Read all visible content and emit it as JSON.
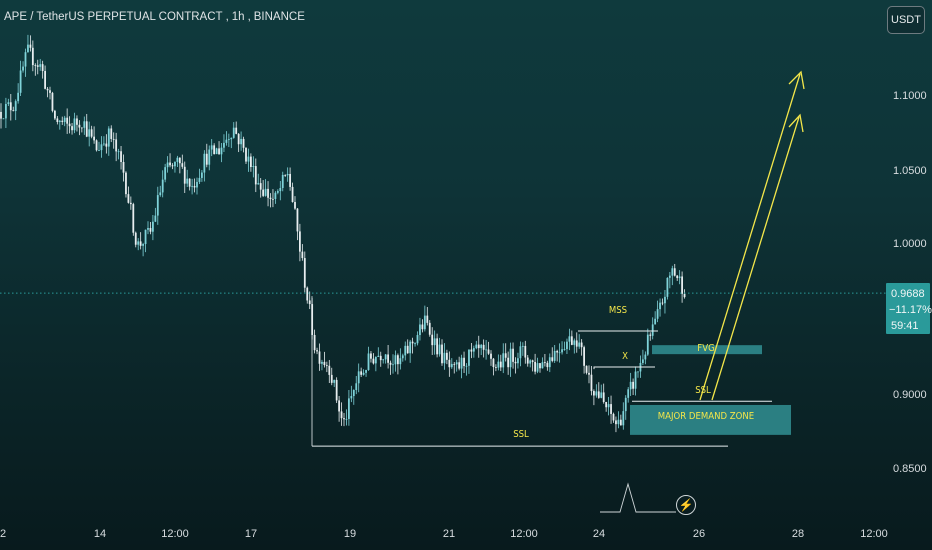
{
  "header": {
    "symbol": "APE / TetherUS PERPETUAL CONTRACT",
    "timeframe": "1h",
    "exchange": "BINANCE",
    "currency_button": "USDT"
  },
  "price_tag": {
    "price": "0.9688",
    "change": "−11.17%",
    "countdown": "59:41",
    "color": "#2a9a9a"
  },
  "event_icon": "lightning-bolt-icon",
  "chart_data": {
    "type": "candlestick",
    "title": "APE / TetherUS PERPETUAL CONTRACT, 1h, BINANCE",
    "xlabel": "",
    "ylabel": "",
    "ylim": [
      0.8,
      1.16
    ],
    "grid": false,
    "x_ticks": [
      "2",
      "14",
      "12:00",
      "17",
      "19",
      "21",
      "12:00",
      "24",
      "26",
      "28",
      "12:00"
    ],
    "y_ticks": [
      "1.1000",
      "1.0500",
      "1.0000",
      "0.9000",
      "0.8500"
    ],
    "y_tick_values": [
      1.1,
      1.05,
      1.0,
      0.9,
      0.85
    ],
    "current_price": 0.9688,
    "close_path": [
      [
        0,
        1.09
      ],
      [
        1,
        1.095
      ],
      [
        2,
        1.13
      ],
      [
        3,
        1.12
      ],
      [
        4,
        1.085
      ],
      [
        5,
        1.08
      ],
      [
        6,
        1.085
      ],
      [
        7,
        1.065
      ],
      [
        8,
        1.075
      ],
      [
        9,
        1.05
      ],
      [
        10,
        1.0
      ],
      [
        11,
        1.01
      ],
      [
        12,
        1.05
      ],
      [
        13,
        1.055
      ],
      [
        14,
        1.04
      ],
      [
        15,
        1.06
      ],
      [
        16,
        1.065
      ],
      [
        17,
        1.08
      ],
      [
        18,
        1.06
      ],
      [
        19,
        1.04
      ],
      [
        20,
        1.03
      ],
      [
        21,
        1.05
      ],
      [
        22,
        0.99
      ],
      [
        23,
        0.93
      ],
      [
        24,
        0.92
      ],
      [
        25,
        0.88
      ],
      [
        26,
        0.91
      ],
      [
        27,
        0.925
      ],
      [
        28,
        0.93
      ],
      [
        29,
        0.92
      ],
      [
        30,
        0.935
      ],
      [
        31,
        0.95
      ],
      [
        32,
        0.93
      ],
      [
        33,
        0.915
      ],
      [
        34,
        0.925
      ],
      [
        35,
        0.93
      ],
      [
        36,
        0.92
      ],
      [
        37,
        0.925
      ],
      [
        38,
        0.93
      ],
      [
        39,
        0.92
      ],
      [
        40,
        0.925
      ],
      [
        41,
        0.935
      ],
      [
        42,
        0.94
      ],
      [
        43,
        0.91
      ],
      [
        44,
        0.895
      ],
      [
        45,
        0.88
      ],
      [
        46,
        0.905
      ],
      [
        47,
        0.93
      ],
      [
        48,
        0.955
      ],
      [
        49,
        0.985
      ],
      [
        50,
        0.97
      ]
    ],
    "annotations": [
      {
        "label": "MSS",
        "type": "hline",
        "price": 0.9435
      },
      {
        "label": "X",
        "type": "hline",
        "price": 0.918
      },
      {
        "label": "FVG",
        "type": "zone",
        "price_low": 0.928,
        "price_high": 0.934
      },
      {
        "label": "SSL",
        "type": "hline",
        "price": 0.8965
      },
      {
        "label": "MAJOR DEMAND ZONE",
        "type": "zone",
        "price_low": 0.874,
        "price_high": 0.894
      },
      {
        "label": "SSL",
        "type": "hline",
        "price": 0.8665
      }
    ],
    "projection_arrows": 2,
    "annotation_color": "#f3e64a",
    "zone_color": "#2f8a8d",
    "bull_color": "#7fd3d9",
    "bear_color": "#e8eef0"
  }
}
